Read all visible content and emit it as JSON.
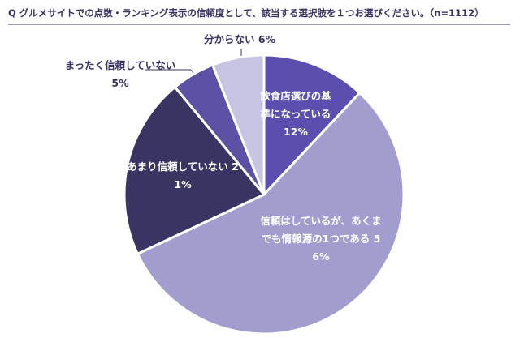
{
  "chart_data": {
    "type": "pie",
    "title": "Q グルメサイトでの点数・ランキング表示の信頼度として、該当する選択肢を１つお選びください。（n=1112）",
    "categories": [
      "飲食店選びの基準になっている",
      "信頼はしているが、あくまでも情報源の1つである",
      "あまり信頼していない",
      "まったく信頼していない",
      "分からない"
    ],
    "values": [
      12,
      56,
      21,
      5,
      6
    ],
    "value_labels": [
      "12%",
      "56%",
      "21%",
      "5%",
      "6%"
    ],
    "colors": [
      "#5a4fae",
      "#a19dcf",
      "#3a3462",
      "#5c52a5",
      "#c7c3e3"
    ]
  }
}
